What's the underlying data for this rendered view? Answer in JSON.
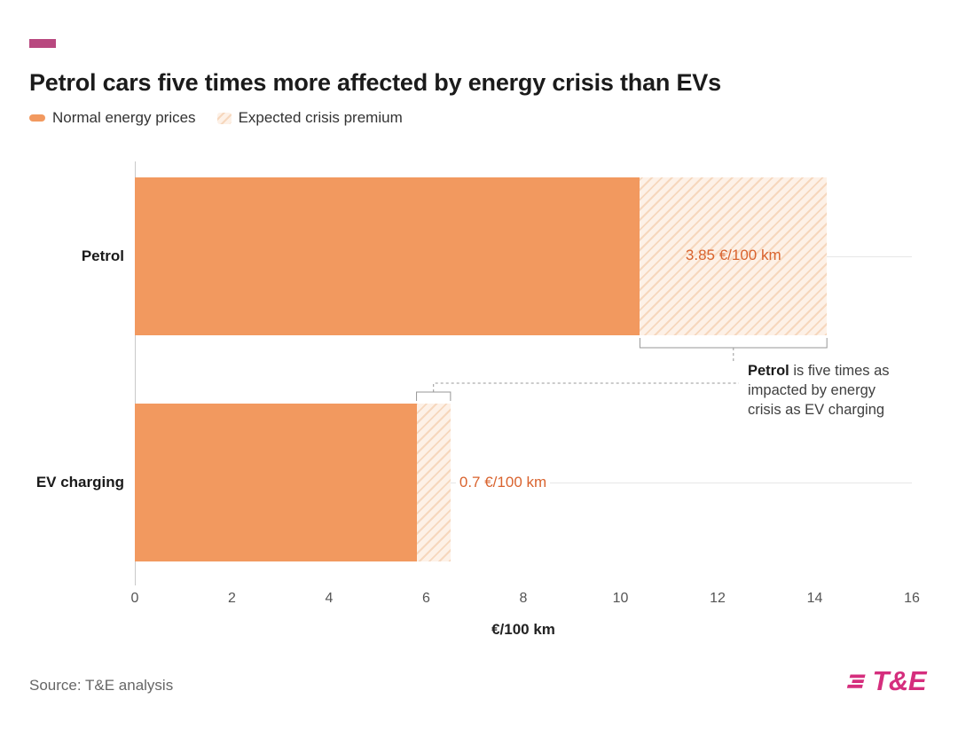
{
  "header": {
    "title": "Petrol cars five times more affected by energy crisis than EVs"
  },
  "legend": {
    "items": [
      {
        "label": "Normal energy prices",
        "swatch": "solid-orange"
      },
      {
        "label": "Expected crisis premium",
        "swatch": "hatched-light-orange"
      }
    ]
  },
  "chart_data": {
    "type": "bar",
    "orientation": "horizontal",
    "title": "Petrol cars five times more affected by energy crisis than EVs",
    "categories": [
      "Petrol",
      "EV charging"
    ],
    "series": [
      {
        "name": "Normal energy prices",
        "values": [
          10.4,
          5.8
        ]
      },
      {
        "name": "Expected crisis premium",
        "values": [
          3.85,
          0.7
        ]
      }
    ],
    "premium_labels": [
      "3.85 €/100 km",
      "0.7 €/100 km"
    ],
    "xlabel": "€/100 km",
    "xlim": [
      0,
      16
    ],
    "xticks": [
      "0",
      "2",
      "4",
      "6",
      "8",
      "10",
      "12",
      "14",
      "16"
    ],
    "grid": "horizontal-category-lines",
    "legend_position": "top-left",
    "annotation": {
      "bold": "Petrol",
      "rest": " is five times as impacted by energy crisis as EV charging"
    },
    "colors": {
      "normal": "#F2995F",
      "premium_bg": "#FDF1E7",
      "premium_stripe": "#F6D7BD",
      "value_label": "#D9632E",
      "accent": "#B8487F",
      "logo": "#D52E7D"
    }
  },
  "footer": {
    "source": "Source: T&E analysis",
    "logo_text": "T&E"
  }
}
